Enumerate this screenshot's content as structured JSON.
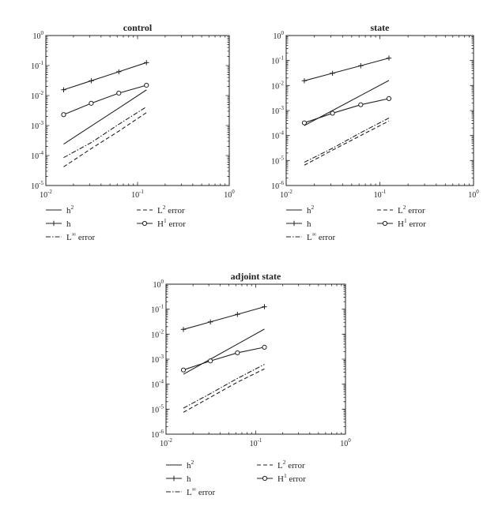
{
  "chart_data": [
    {
      "type": "line",
      "title": "control",
      "xscale": "log",
      "yscale": "log",
      "xlim": [
        0.01,
        1
      ],
      "ylim": [
        1e-05,
        1
      ],
      "x_tick_labels": [
        {
          "base": "10",
          "exp": "-2"
        },
        {
          "base": "10",
          "exp": "-1"
        },
        {
          "base": "10",
          "exp": "0"
        }
      ],
      "y_tick_labels": [
        {
          "base": "10",
          "exp": "-5"
        },
        {
          "base": "10",
          "exp": "-4"
        },
        {
          "base": "10",
          "exp": "-3"
        },
        {
          "base": "10",
          "exp": "-2"
        },
        {
          "base": "10",
          "exp": "-1"
        },
        {
          "base": "10",
          "exp": "0"
        }
      ],
      "x": [
        0.015625,
        0.03125,
        0.0625,
        0.125
      ],
      "series": [
        {
          "key": "h2",
          "label": {
            "base": "h",
            "sup": "2"
          },
          "style": "solid",
          "marker": "none",
          "values": [
            0.00024,
            0.00096,
            0.0038,
            0.0154
          ]
        },
        {
          "key": "h",
          "label": {
            "base": "h",
            "sup": ""
          },
          "style": "solid",
          "marker": "plus",
          "values": [
            0.0155,
            0.031,
            0.062,
            0.125
          ]
        },
        {
          "key": "linf",
          "label": {
            "base": "L",
            "sup": "∞",
            "suffix": " error"
          },
          "style": "dashdot",
          "marker": "none",
          "values": [
            8.5e-05,
            0.00027,
            0.0011,
            0.0042
          ]
        },
        {
          "key": "l2",
          "label": {
            "base": "L",
            "sup": "2",
            "suffix": " error"
          },
          "style": "dashed",
          "marker": "none",
          "values": [
            4.2e-05,
            0.00017,
            0.00065,
            0.0027
          ]
        },
        {
          "key": "h1",
          "label": {
            "base": "H",
            "sup": "1",
            "suffix": " error"
          },
          "style": "solid",
          "marker": "circle",
          "values": [
            0.0023,
            0.0055,
            0.012,
            0.022
          ]
        }
      ],
      "legend": "below"
    },
    {
      "type": "line",
      "title": "state",
      "xscale": "log",
      "yscale": "log",
      "xlim": [
        0.01,
        1
      ],
      "ylim": [
        1e-06,
        1
      ],
      "x_tick_labels": [
        {
          "base": "10",
          "exp": "-2"
        },
        {
          "base": "10",
          "exp": "-1"
        },
        {
          "base": "10",
          "exp": "0"
        }
      ],
      "y_tick_labels": [
        {
          "base": "10",
          "exp": "-6"
        },
        {
          "base": "10",
          "exp": "-5"
        },
        {
          "base": "10",
          "exp": "-4"
        },
        {
          "base": "10",
          "exp": "-3"
        },
        {
          "base": "10",
          "exp": "-2"
        },
        {
          "base": "10",
          "exp": "-1"
        },
        {
          "base": "10",
          "exp": "0"
        }
      ],
      "x": [
        0.015625,
        0.03125,
        0.0625,
        0.125
      ],
      "series": [
        {
          "key": "h2",
          "label": {
            "base": "h",
            "sup": "2"
          },
          "style": "solid",
          "marker": "none",
          "values": [
            0.00025,
            0.001,
            0.004,
            0.016
          ]
        },
        {
          "key": "h",
          "label": {
            "base": "h",
            "sup": ""
          },
          "style": "solid",
          "marker": "plus",
          "values": [
            0.0155,
            0.031,
            0.062,
            0.125
          ]
        },
        {
          "key": "linf",
          "label": {
            "base": "L",
            "sup": "∞",
            "suffix": " error"
          },
          "style": "dashdot",
          "marker": "none",
          "values": [
            8.5e-06,
            3.1e-05,
            0.00013,
            0.0005
          ]
        },
        {
          "key": "l2",
          "label": {
            "base": "L",
            "sup": "2",
            "suffix": " error"
          },
          "style": "dashed",
          "marker": "none",
          "values": [
            6.5e-06,
            2.6e-05,
            0.0001,
            0.00038
          ]
        },
        {
          "key": "h1",
          "label": {
            "base": "H",
            "sup": "1",
            "suffix": " error"
          },
          "style": "solid",
          "marker": "circle",
          "values": [
            0.00032,
            0.00078,
            0.0017,
            0.003
          ]
        }
      ],
      "legend": "below"
    },
    {
      "type": "line",
      "title": "adjoint state",
      "xscale": "log",
      "yscale": "log",
      "xlim": [
        0.01,
        1
      ],
      "ylim": [
        1e-06,
        1
      ],
      "x_tick_labels": [
        {
          "base": "10",
          "exp": "-2"
        },
        {
          "base": "10",
          "exp": "-1"
        },
        {
          "base": "10",
          "exp": "0"
        }
      ],
      "y_tick_labels": [
        {
          "base": "10",
          "exp": "-6"
        },
        {
          "base": "10",
          "exp": "-5"
        },
        {
          "base": "10",
          "exp": "-4"
        },
        {
          "base": "10",
          "exp": "-3"
        },
        {
          "base": "10",
          "exp": "-2"
        },
        {
          "base": "10",
          "exp": "-1"
        },
        {
          "base": "10",
          "exp": "0"
        }
      ],
      "x": [
        0.015625,
        0.03125,
        0.0625,
        0.125
      ],
      "series": [
        {
          "key": "h2",
          "label": {
            "base": "h",
            "sup": "2"
          },
          "style": "solid",
          "marker": "none",
          "values": [
            0.00025,
            0.001,
            0.004,
            0.016
          ]
        },
        {
          "key": "h",
          "label": {
            "base": "h",
            "sup": ""
          },
          "style": "solid",
          "marker": "plus",
          "values": [
            0.0155,
            0.031,
            0.062,
            0.125
          ]
        },
        {
          "key": "linf",
          "label": {
            "base": "L",
            "sup": "∞",
            "suffix": " error"
          },
          "style": "dashdot",
          "marker": "none",
          "values": [
            1.1e-05,
            4.2e-05,
            0.00017,
            0.00062
          ]
        },
        {
          "key": "l2",
          "label": {
            "base": "L",
            "sup": "2",
            "suffix": " error"
          },
          "style": "dashed",
          "marker": "none",
          "values": [
            7.5e-06,
            3e-05,
            0.00012,
            0.00041
          ]
        },
        {
          "key": "h1",
          "label": {
            "base": "H",
            "sup": "1",
            "suffix": " error"
          },
          "style": "solid",
          "marker": "circle",
          "values": [
            0.00037,
            0.00085,
            0.0018,
            0.003
          ]
        }
      ],
      "legend": "below"
    }
  ]
}
